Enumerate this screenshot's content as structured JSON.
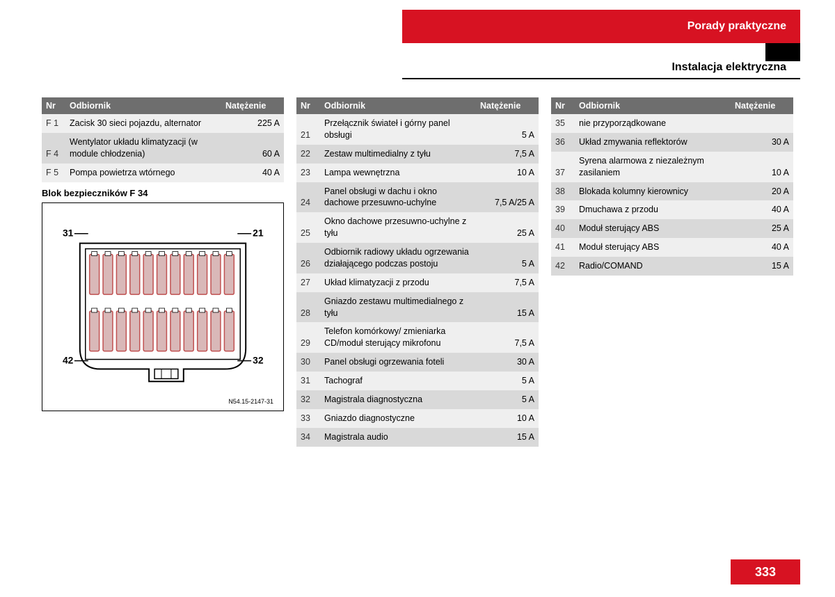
{
  "header": {
    "title": "Porady praktyczne",
    "subtitle": "Instalacja elektryczna"
  },
  "pageNumber": "333",
  "columnsHeader": {
    "nr": "Nr",
    "receiver": "Odbiornik",
    "amperage": "Natężenie"
  },
  "blockTitle": "Blok bezpieczników F 34",
  "diagramCode": "N54.15-2147-31",
  "diagramLabels": {
    "tl": "31",
    "tr": "21",
    "bl": "42",
    "br": "32"
  },
  "table1": [
    {
      "nr": "F 1",
      "desc": "Zacisk 30 sieci pojazdu, alternator",
      "amp": "225 A",
      "shade": "light"
    },
    {
      "nr": "F 4",
      "desc": "Wentylator układu klimatyzacji (w module chłodzenia)",
      "amp": "60 A",
      "shade": "dark"
    },
    {
      "nr": "F 5",
      "desc": "Pompa powietrza wtórnego",
      "amp": "40 A",
      "shade": "light"
    }
  ],
  "table2": [
    {
      "nr": "21",
      "desc": "Przełącznik świateł i górny panel obsługi",
      "amp": "5 A",
      "shade": "light"
    },
    {
      "nr": "22",
      "desc": "Zestaw multimedialny z tyłu",
      "amp": "7,5 A",
      "shade": "dark"
    },
    {
      "nr": "23",
      "desc": "Lampa wewnętrzna",
      "amp": "10 A",
      "shade": "light"
    },
    {
      "nr": "24",
      "desc": "Panel obsługi w dachu i okno dachowe przesuwno-uchylne",
      "amp": "7,5 A/25 A",
      "shade": "dark"
    },
    {
      "nr": "25",
      "desc": "Okno dachowe przesuwno-uchylne z tyłu",
      "amp": "25 A",
      "shade": "light"
    },
    {
      "nr": "26",
      "desc": "Odbiornik radiowy układu ogrzewania działającego podczas postoju",
      "amp": "5 A",
      "shade": "dark"
    },
    {
      "nr": "27",
      "desc": "Układ klimatyzacji z przodu",
      "amp": "7,5 A",
      "shade": "light"
    },
    {
      "nr": "28",
      "desc": "Gniazdo zestawu multimedialnego z tyłu",
      "amp": "15 A",
      "shade": "dark"
    },
    {
      "nr": "29",
      "desc": "Telefon komórkowy/ zmieniarka CD/moduł sterujący mikrofonu",
      "amp": "7,5 A",
      "shade": "light"
    },
    {
      "nr": "30",
      "desc": "Panel obsługi ogrzewania foteli",
      "amp": "30 A",
      "shade": "dark"
    },
    {
      "nr": "31",
      "desc": "Tachograf",
      "amp": "5 A",
      "shade": "light"
    },
    {
      "nr": "32",
      "desc": "Magistrala diagnostyczna",
      "amp": "5 A",
      "shade": "dark"
    },
    {
      "nr": "33",
      "desc": "Gniazdo diagnostyczne",
      "amp": "10 A",
      "shade": "light"
    },
    {
      "nr": "34",
      "desc": "Magistrala audio",
      "amp": "15 A",
      "shade": "dark"
    }
  ],
  "table3": [
    {
      "nr": "35",
      "desc": "nie przyporządkowane",
      "amp": "",
      "shade": "light"
    },
    {
      "nr": "36",
      "desc": "Układ zmywania reflektorów",
      "amp": "30 A",
      "shade": "dark"
    },
    {
      "nr": "37",
      "desc": "Syrena alarmowa z niezależnym zasilaniem",
      "amp": "10 A",
      "shade": "light"
    },
    {
      "nr": "38",
      "desc": "Blokada kolumny kierownicy",
      "amp": "20 A",
      "shade": "dark"
    },
    {
      "nr": "39",
      "desc": "Dmuchawa z przodu",
      "amp": "40 A",
      "shade": "light"
    },
    {
      "nr": "40",
      "desc": "Moduł sterujący ABS",
      "amp": "25 A",
      "shade": "dark"
    },
    {
      "nr": "41",
      "desc": "Moduł sterujący ABS",
      "amp": "40 A",
      "shade": "light"
    },
    {
      "nr": "42",
      "desc": "Radio/COMAND",
      "amp": "15 A",
      "shade": "dark"
    }
  ],
  "colors": {
    "headerBg": "#d71222",
    "tableHeaderBg": "#6e6e6e",
    "rowLight": "#efefef",
    "rowDark": "#d9d9d9",
    "fuseFill": "#d9b8b8",
    "fuseStroke": "#c05050"
  }
}
